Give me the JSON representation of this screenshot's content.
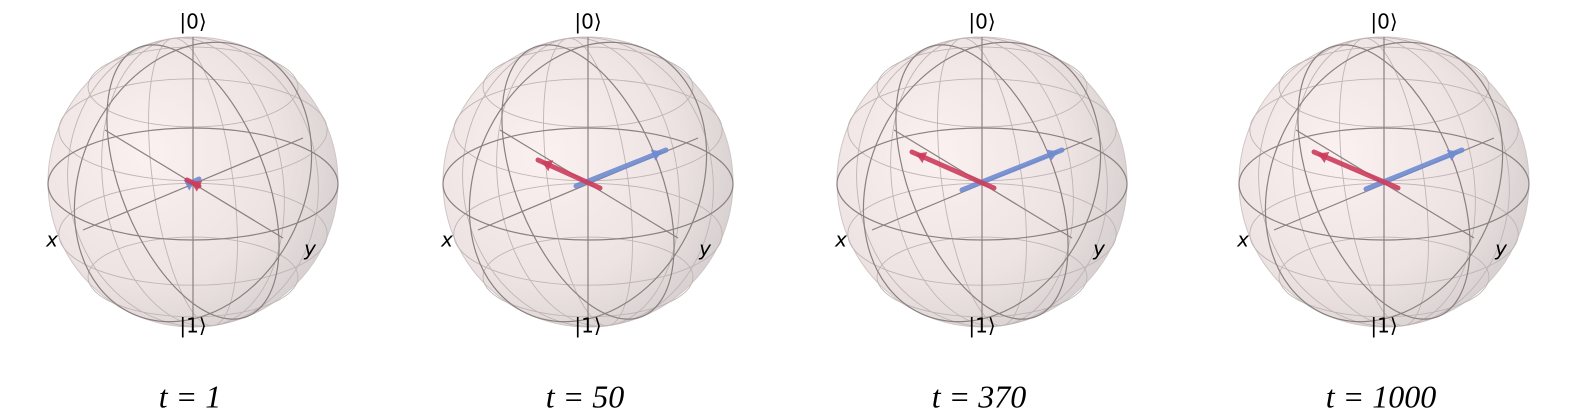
{
  "panels": [
    {
      "top_label": "|0⟩",
      "bottom_label": "|1⟩",
      "x_label": "x",
      "y_label": "y",
      "caption": "t = 1"
    },
    {
      "top_label": "|0⟩",
      "bottom_label": "|1⟩",
      "x_label": "x",
      "y_label": "y",
      "caption": "t = 50"
    },
    {
      "top_label": "|0⟩",
      "bottom_label": "|1⟩",
      "x_label": "x",
      "y_label": "y",
      "caption": "t = 370"
    },
    {
      "top_label": "|0⟩",
      "bottom_label": "|1⟩",
      "x_label": "x",
      "y_label": "y",
      "caption": "t = 1000"
    }
  ]
}
